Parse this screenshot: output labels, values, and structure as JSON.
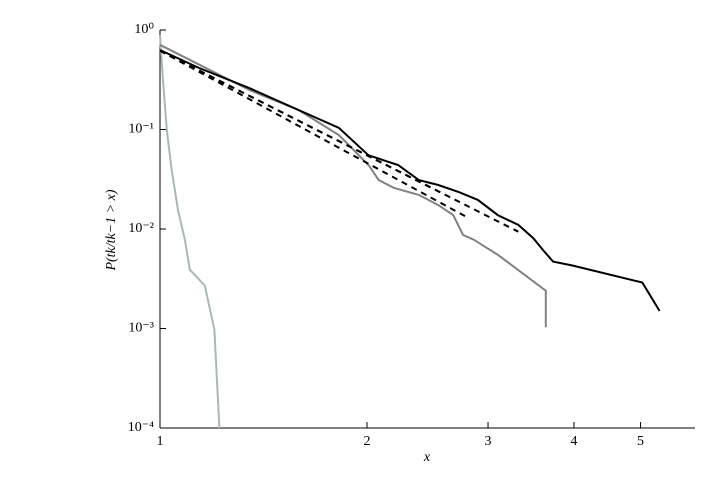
{
  "chart_data": {
    "type": "line",
    "xlabel": "x",
    "ylabel": "P(tk/tk−1 > x)",
    "xscale": "log",
    "yscale": "log",
    "xlim": [
      1,
      6
    ],
    "ylim": [
      0.0001,
      1
    ],
    "xticks": [
      1,
      2,
      3,
      4,
      5
    ],
    "yticks": [
      {
        "value": 1,
        "label": "10⁰"
      },
      {
        "value": 0.1,
        "label": "10⁻¹"
      },
      {
        "value": 0.01,
        "label": "10⁻²"
      },
      {
        "value": 0.001,
        "label": "10⁻³"
      },
      {
        "value": 0.0001,
        "label": "10⁻⁴"
      }
    ],
    "series": [
      {
        "color": "#aab8b4",
        "dash": false,
        "x": [
          1,
          1.01,
          1.023,
          1.04,
          1.062,
          1.087,
          1.105,
          1.162,
          1.2,
          1.22
        ],
        "values": [
          0.89,
          0.31,
          0.099,
          0.039,
          0.0155,
          0.0078,
          0.0039,
          0.0027,
          0.00097,
          0.0001
        ]
      },
      {
        "color": "#808080",
        "dash": false,
        "x": [
          1,
          1.35,
          1.59,
          1.82,
          2.01,
          2.08,
          2.19,
          2.38,
          2.54,
          2.67,
          2.76,
          2.86,
          3.1,
          3.64,
          3.64
        ],
        "values": [
          0.71,
          0.249,
          0.157,
          0.088,
          0.044,
          0.031,
          0.0258,
          0.022,
          0.0174,
          0.0138,
          0.0087,
          0.0078,
          0.0055,
          0.0024,
          0.00103
        ]
      },
      {
        "color": "#000000",
        "dash": false,
        "x": [
          1,
          1.14,
          1.35,
          1.59,
          1.82,
          2.01,
          2.22,
          2.38,
          2.54,
          2.72,
          2.9,
          3.1,
          3.32,
          3.49,
          3.61,
          3.73,
          3.98,
          5.03,
          5.33
        ],
        "values": [
          0.63,
          0.415,
          0.26,
          0.157,
          0.104,
          0.055,
          0.044,
          0.031,
          0.0277,
          0.0235,
          0.0196,
          0.0138,
          0.011,
          0.0081,
          0.0061,
          0.0047,
          0.0043,
          0.0029,
          0.0015
        ]
      },
      {
        "color": "#000000",
        "dash": true,
        "x": [
          1,
          3.32
        ],
        "values": [
          0.62,
          0.0094
        ]
      },
      {
        "color": "#000000",
        "dash": true,
        "x": [
          1,
          2.81
        ],
        "values": [
          0.62,
          0.0129
        ]
      },
      {
        "color": "#000000",
        "dash": true,
        "x": [
          1,
          2.6
        ],
        "values": [
          0.62,
          0.022
        ]
      }
    ]
  }
}
